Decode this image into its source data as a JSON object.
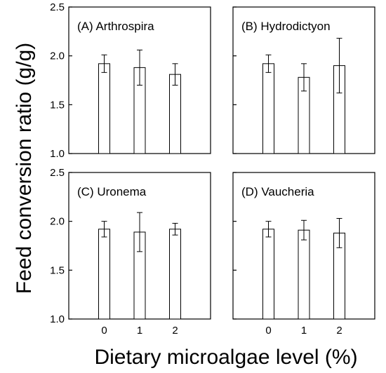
{
  "figure": {
    "ylabel": "Feed conversion ratio (g/g)",
    "xlabel": "Dietary microalgae level (%)"
  },
  "chart_data": [
    {
      "type": "bar",
      "title": "(A) Arthrospira",
      "categories": [
        "0",
        "1",
        "2"
      ],
      "values": [
        1.92,
        1.88,
        1.81
      ],
      "errors": [
        0.09,
        0.18,
        0.11
      ],
      "ylim": [
        1.0,
        2.5
      ],
      "yticks": [
        "1.0",
        "1.5",
        "2.0",
        "2.5"
      ],
      "grid": false
    },
    {
      "type": "bar",
      "title": "(B) Hydrodictyon",
      "categories": [
        "0",
        "1",
        "2"
      ],
      "values": [
        1.92,
        1.78,
        1.9
      ],
      "errors": [
        0.09,
        0.14,
        0.28
      ],
      "ylim": [
        1.0,
        2.5
      ],
      "yticks": [
        "1.0",
        "1.5",
        "2.0",
        "2.5"
      ],
      "grid": false
    },
    {
      "type": "bar",
      "title": "(C) Uronema",
      "categories": [
        "0",
        "1",
        "2"
      ],
      "values": [
        1.92,
        1.89,
        1.92
      ],
      "errors": [
        0.08,
        0.2,
        0.06
      ],
      "ylim": [
        1.0,
        2.5
      ],
      "yticks": [
        "1.0",
        "1.5",
        "2.0",
        "2.5"
      ],
      "grid": false
    },
    {
      "type": "bar",
      "title": "(D) Vaucheria",
      "categories": [
        "0",
        "1",
        "2"
      ],
      "values": [
        1.92,
        1.91,
        1.88
      ],
      "errors": [
        0.08,
        0.1,
        0.15
      ],
      "ylim": [
        1.0,
        2.5
      ],
      "yticks": [
        "1.0",
        "1.5",
        "2.0",
        "2.5"
      ],
      "grid": false
    }
  ]
}
